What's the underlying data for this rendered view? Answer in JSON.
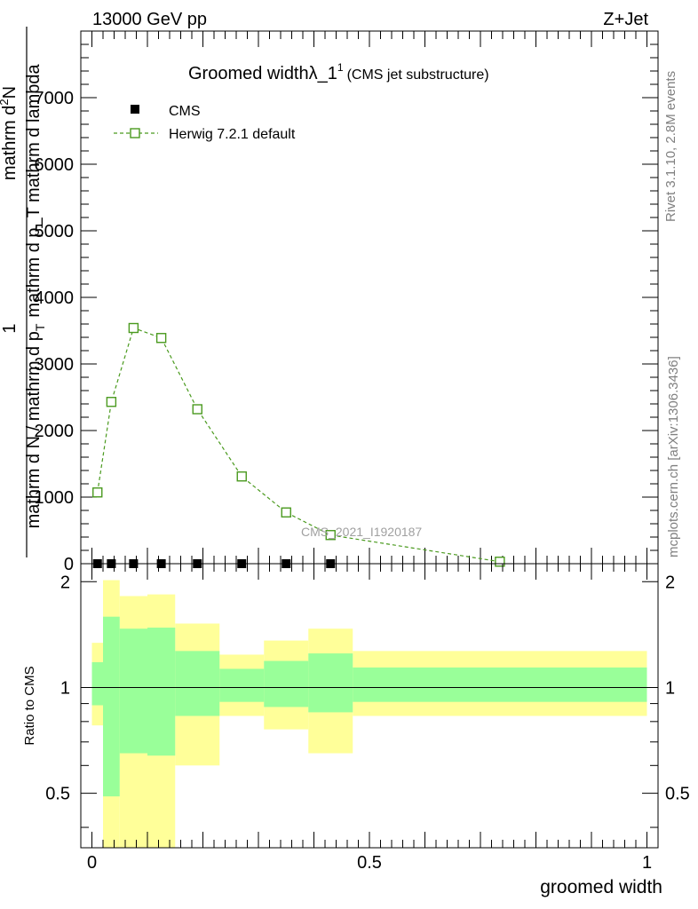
{
  "header": {
    "left": "13000 GeV pp",
    "right": "Z+Jet"
  },
  "side_labels": {
    "rivet": "Rivet 3.1.10,  2.8M events",
    "mcplots": "mcplots.cern.ch [arXiv:1306.3436]"
  },
  "chart_data": [
    {
      "type": "scatter",
      "panel": "main",
      "title_main": "Groomed width",
      "title_symbol": "λ_1",
      "title_sup": "1",
      "title_suffix": "(CMS jet substructure)",
      "ylabel_numerator": "mathrm d",
      "ylabel_numerator_sup": "2",
      "ylabel_numerator_tail": "N",
      "ylabel_denominator": "mathrm d p_T mathrm d lambda",
      "ylabel_denominator_sub": "T",
      "ylabel_prefix_num": "1",
      "ylabel_prefix_den": "mathrm d N / mathrm d p",
      "ylabel_prefix_sub": "T",
      "analysis_label": "CMS_2021_I1920187",
      "xlim": [
        -0.02,
        1.02
      ],
      "ylim": [
        0,
        8000
      ],
      "yticks_major": [
        0,
        1000,
        2000,
        3000,
        4000,
        5000,
        6000,
        7000
      ],
      "yticklabels": [
        "0",
        "1000",
        "2000",
        "3000",
        "4000",
        "5000",
        "6000",
        "7000"
      ],
      "legend": {
        "placement": "top-left"
      },
      "series": [
        {
          "name": "CMS",
          "marker": "filled-square",
          "color": "#000000",
          "x": [
            0.01,
            0.035,
            0.075,
            0.125,
            0.19,
            0.27,
            0.35,
            0.43
          ],
          "y": [
            0,
            0,
            0,
            0,
            0,
            0,
            0,
            0
          ]
        },
        {
          "name": "Herwig 7.2.1 default",
          "marker": "open-square",
          "line": "dashed",
          "color": "#4a9a1e",
          "x": [
            0.01,
            0.035,
            0.075,
            0.125,
            0.19,
            0.27,
            0.35,
            0.43,
            0.735
          ],
          "y": [
            1070,
            2430,
            3540,
            3390,
            2320,
            1310,
            770,
            430,
            30
          ]
        }
      ]
    },
    {
      "type": "area",
      "panel": "ratio",
      "ylabel": "Ratio to CMS",
      "xlabel": "groomed width",
      "xlim": [
        -0.02,
        1.02
      ],
      "ylim": [
        0.35,
        2.25
      ],
      "yticks_labeled": [
        0.5,
        1,
        2
      ],
      "yticklabels": [
        "0.5",
        "1",
        "2"
      ],
      "xticks_labeled": [
        0,
        0.5,
        1
      ],
      "xticklabels": [
        "0",
        "0.5",
        "1"
      ],
      "reference_line": 1,
      "bins": [
        {
          "x0": 0.0,
          "x1": 0.02,
          "yellow": [
            0.78,
            1.34
          ],
          "green": [
            0.89,
            1.18
          ]
        },
        {
          "x0": 0.02,
          "x1": 0.05,
          "yellow": [
            0.35,
            2.02
          ],
          "green": [
            0.49,
            1.59
          ]
        },
        {
          "x0": 0.05,
          "x1": 0.1,
          "yellow": [
            0.35,
            1.82
          ],
          "green": [
            0.65,
            1.47
          ]
        },
        {
          "x0": 0.1,
          "x1": 0.15,
          "yellow": [
            0.35,
            1.84
          ],
          "green": [
            0.64,
            1.48
          ]
        },
        {
          "x0": 0.15,
          "x1": 0.23,
          "yellow": [
            0.6,
            1.52
          ],
          "green": [
            0.83,
            1.27
          ]
        },
        {
          "x0": 0.23,
          "x1": 0.31,
          "yellow": [
            0.83,
            1.24
          ],
          "green": [
            0.91,
            1.13
          ]
        },
        {
          "x0": 0.31,
          "x1": 0.39,
          "yellow": [
            0.76,
            1.36
          ],
          "green": [
            0.88,
            1.19
          ]
        },
        {
          "x0": 0.39,
          "x1": 0.47,
          "yellow": [
            0.65,
            1.47
          ],
          "green": [
            0.85,
            1.25
          ]
        },
        {
          "x0": 0.47,
          "x1": 1.0,
          "yellow": [
            0.83,
            1.27
          ],
          "green": [
            0.91,
            1.14
          ]
        }
      ],
      "colors": {
        "yellow": "#ffff99",
        "green": "#99ff99"
      }
    }
  ]
}
